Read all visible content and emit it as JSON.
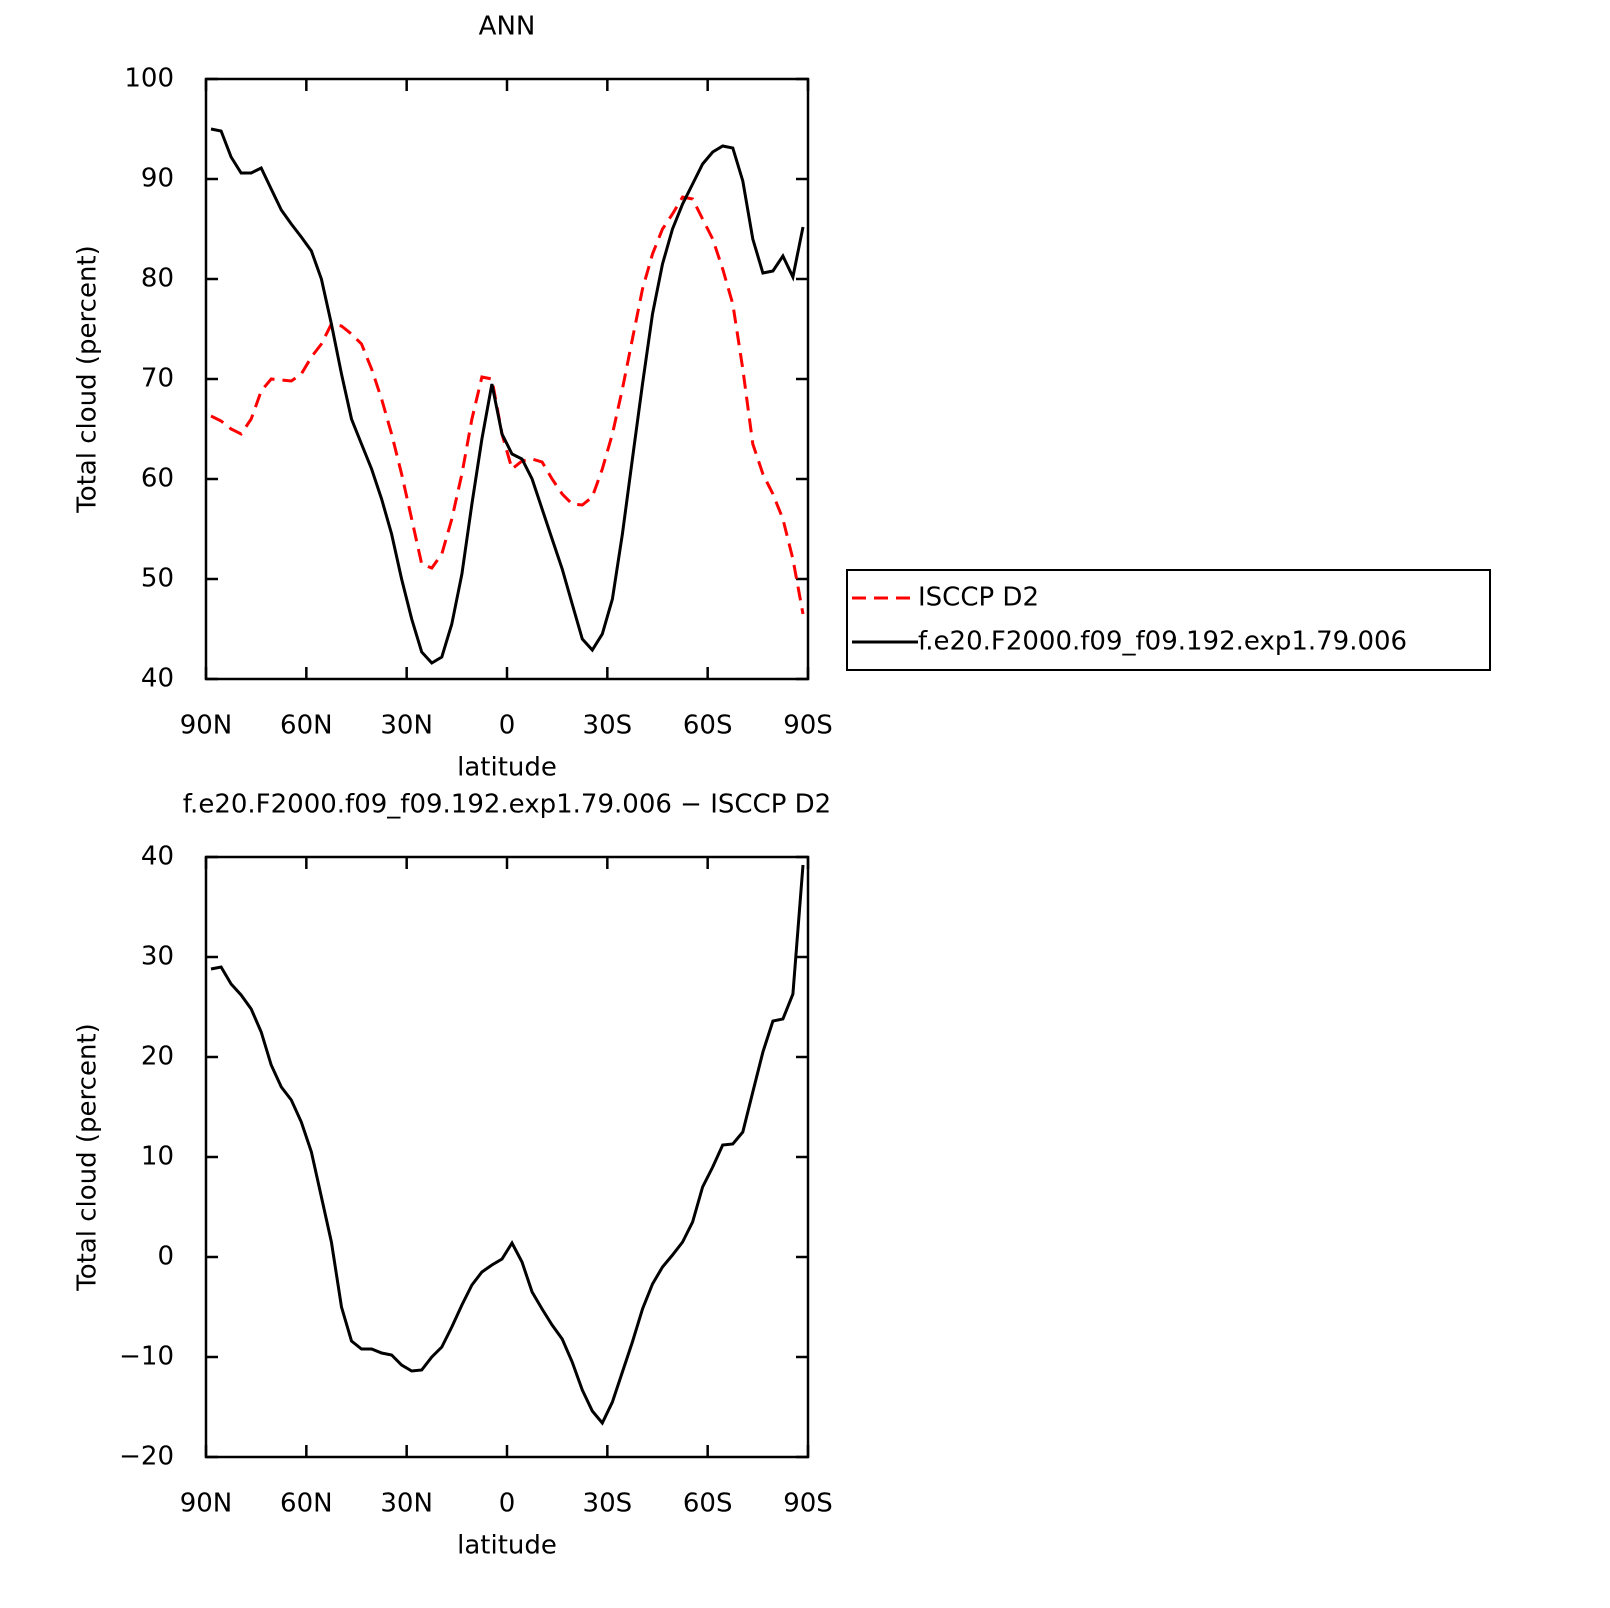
{
  "chart_data": [
    {
      "type": "line",
      "title": "ANN",
      "xlabel": "latitude",
      "ylabel": "Total cloud (percent)",
      "x": [
        88.5,
        85.5,
        82.5,
        79.5,
        76.5,
        73.5,
        70.5,
        67.5,
        64.5,
        61.5,
        58.5,
        55.5,
        52.5,
        49.5,
        46.5,
        43.5,
        40.5,
        37.5,
        34.5,
        31.5,
        28.5,
        25.5,
        22.5,
        19.5,
        16.5,
        13.5,
        10.5,
        7.5,
        4.5,
        1.5,
        -1.5,
        -4.5,
        -7.5,
        -10.5,
        -13.5,
        -16.5,
        -19.5,
        -22.5,
        -25.5,
        -28.5,
        -31.5,
        -34.5,
        -37.5,
        -40.5,
        -43.5,
        -46.5,
        -49.5,
        -52.5,
        -55.5,
        -58.5,
        -61.5,
        -64.5,
        -67.5,
        -70.5,
        -73.5,
        -76.5,
        -79.5,
        -82.5,
        -85.5,
        -88.5
      ],
      "series": [
        {
          "name": "ISCCP D2",
          "color": "#ff0000",
          "dash": true,
          "values": [
            66.3,
            65.8,
            65.0,
            64.5,
            66.0,
            68.8,
            70.0,
            69.9,
            69.8,
            70.5,
            72.2,
            73.5,
            75.5,
            75.3,
            74.5,
            73.5,
            71.0,
            68.0,
            64.5,
            60.5,
            56.0,
            51.5,
            51.1,
            52.5,
            56.0,
            60.5,
            66.0,
            70.2,
            70.0,
            64.5,
            61.0,
            61.8,
            62.0,
            61.7,
            60.0,
            58.5,
            57.5,
            57.4,
            58.2,
            61.0,
            64.5,
            69.0,
            74.0,
            79.0,
            82.5,
            85.0,
            86.5,
            88.2,
            88.0,
            86.0,
            84.0,
            81.0,
            77.5,
            71.0,
            63.5,
            60.5,
            58.5,
            56.0,
            52.0,
            46.5
          ]
        },
        {
          "name": "f.e20.F2000.f09_f09.192.exp1.79.006",
          "color": "#000000",
          "dash": false,
          "values": [
            95.0,
            94.8,
            92.2,
            90.6,
            90.6,
            91.1,
            89.0,
            86.9,
            85.5,
            84.2,
            82.8,
            80.0,
            75.5,
            70.5,
            66.0,
            63.5,
            61.0,
            58.0,
            54.5,
            50.0,
            46.0,
            42.7,
            41.6,
            42.2,
            45.5,
            50.5,
            57.5,
            64.0,
            69.5,
            64.5,
            62.5,
            62.0,
            60.0,
            57.0,
            54.0,
            51.0,
            47.5,
            44.0,
            42.9,
            44.5,
            48.0,
            54.5,
            62.0,
            69.5,
            76.5,
            81.5,
            85.0,
            87.5,
            89.5,
            91.5,
            92.7,
            93.3,
            93.1,
            89.8,
            84.0,
            80.6,
            80.8,
            82.3,
            80.2,
            85.2
          ]
        }
      ],
      "xlim": [
        90,
        -90
      ],
      "xticks": [
        {
          "value": 90,
          "label": "90N"
        },
        {
          "value": 60,
          "label": "60N"
        },
        {
          "value": 30,
          "label": "30N"
        },
        0,
        {
          "value": -30,
          "label": "30S"
        },
        {
          "value": -60,
          "label": "60S"
        },
        {
          "value": -90,
          "label": "90S"
        }
      ],
      "ylim": [
        40,
        100
      ],
      "yticks": [
        40,
        50,
        60,
        70,
        80,
        90,
        100
      ],
      "legend": "right"
    },
    {
      "type": "line",
      "title": "f.e20.F2000.f09_f09.192.exp1.79.006 − ISCCP D2",
      "xlabel": "latitude",
      "ylabel": "Total cloud (percent)",
      "x": [
        88.5,
        85.5,
        82.5,
        79.5,
        76.5,
        73.5,
        70.5,
        67.5,
        64.5,
        61.5,
        58.5,
        55.5,
        52.5,
        49.5,
        46.5,
        43.5,
        40.5,
        37.5,
        34.5,
        31.5,
        28.5,
        25.5,
        22.5,
        19.5,
        16.5,
        13.5,
        10.5,
        7.5,
        4.5,
        1.5,
        -1.5,
        -4.5,
        -7.5,
        -10.5,
        -13.5,
        -16.5,
        -19.5,
        -22.5,
        -25.5,
        -28.5,
        -31.5,
        -34.5,
        -37.5,
        -40.5,
        -43.5,
        -46.5,
        -49.5,
        -52.5,
        -55.5,
        -58.5,
        -61.5,
        -64.5,
        -67.5,
        -70.5,
        -73.5,
        -76.5,
        -79.5,
        -82.5,
        -85.5,
        -88.5
      ],
      "series": [
        {
          "color": "#000000",
          "dash": false,
          "values": [
            28.8,
            29.0,
            27.3,
            26.2,
            24.8,
            22.5,
            19.2,
            17.0,
            15.7,
            13.5,
            10.5,
            6.0,
            1.5,
            -5.0,
            -8.4,
            -9.2,
            -9.2,
            -9.6,
            -9.8,
            -10.8,
            -11.4,
            -11.3,
            -10.0,
            -9.0,
            -7.0,
            -4.8,
            -2.8,
            -1.5,
            -0.8,
            -0.2,
            1.4,
            -0.5,
            -3.5,
            -5.2,
            -6.8,
            -8.2,
            -10.5,
            -13.3,
            -15.4,
            -16.6,
            -14.5,
            -11.5,
            -8.5,
            -5.2,
            -2.7,
            -1.0,
            0.2,
            1.5,
            3.5,
            7.0,
            9.0,
            11.2,
            11.3,
            12.5,
            16.5,
            20.5,
            23.6,
            23.8,
            26.3,
            39.2
          ]
        }
      ],
      "xlim": [
        90,
        -90
      ],
      "xticks": [
        {
          "value": 90,
          "label": "90N"
        },
        {
          "value": 60,
          "label": "60N"
        },
        {
          "value": 30,
          "label": "30N"
        },
        0,
        {
          "value": -30,
          "label": "30S"
        },
        {
          "value": -60,
          "label": "60S"
        },
        {
          "value": -90,
          "label": "90S"
        }
      ],
      "ylim": [
        -20,
        40
      ],
      "yticks": [
        {
          "value": -20,
          "label": "−20"
        },
        {
          "value": -10,
          "label": "−10"
        },
        0,
        10,
        20,
        30,
        40
      ]
    }
  ]
}
